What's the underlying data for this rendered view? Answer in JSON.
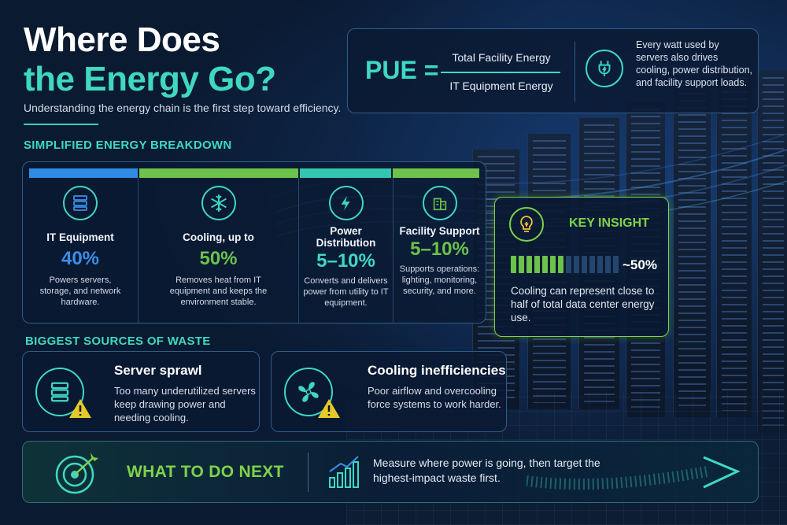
{
  "header": {
    "title_line1": "Where Does",
    "title_line2": "the Energy Go?",
    "subtitle": "Understanding the energy chain is the first step toward efficiency."
  },
  "pue": {
    "label": "PUE =",
    "numerator": "Total Facility Energy",
    "denominator": "IT Equipment Energy",
    "icon": "plug-icon",
    "note": "Every watt used by servers also drives cooling, power distribution, and facility support loads."
  },
  "breakdown": {
    "heading": "SIMPLIFIED ENERGY BREAKDOWN",
    "items": [
      {
        "name": "IT Equipment",
        "percent": "40%",
        "description": "Powers servers, storage, and network hardware.",
        "icon": "server-icon",
        "color": "#3b8ee8"
      },
      {
        "name": "Cooling, up to",
        "percent": "50%",
        "description": "Removes heat from IT equipment and keeps the environment stable.",
        "icon": "snowflake-icon",
        "color": "#6cc24a"
      },
      {
        "name": "Power Distribution",
        "percent": "5–10%",
        "description": "Converts and delivers power from utility to IT equipment.",
        "icon": "lightning-icon",
        "color": "#3fd8c0"
      },
      {
        "name": "Facility Support",
        "percent": "5–10%",
        "description": "Supports operations: lighting, monitoring, security, and more.",
        "icon": "building-icon",
        "color": "#3fd8c0"
      }
    ]
  },
  "insight": {
    "title": "KEY INSIGHT",
    "value_label": "~50%",
    "level": 0.5,
    "text": "Cooling can represent close to half of total data center energy use.",
    "icon": "lightbulb-icon"
  },
  "waste": {
    "heading": "BIGGEST SOURCES OF WASTE",
    "items": [
      {
        "title": "Server sprawl",
        "text": "Too many underutilized servers keep drawing power and needing cooling.",
        "icon": "server-warning-icon"
      },
      {
        "title": "Cooling inefficiencies",
        "text": "Poor airflow and overcooling force systems to work harder.",
        "icon": "fan-warning-icon"
      }
    ]
  },
  "next": {
    "title": "WHAT TO DO NEXT",
    "text": "Measure where power is going, then target the highest-impact waste first.",
    "icons": [
      "target-icon",
      "growth-chart-icon",
      "arrow-icon"
    ]
  },
  "colors": {
    "teal": "#3fd8c0",
    "green": "#7fd24a",
    "blue": "#3b8ee8",
    "navy": "#081426"
  }
}
